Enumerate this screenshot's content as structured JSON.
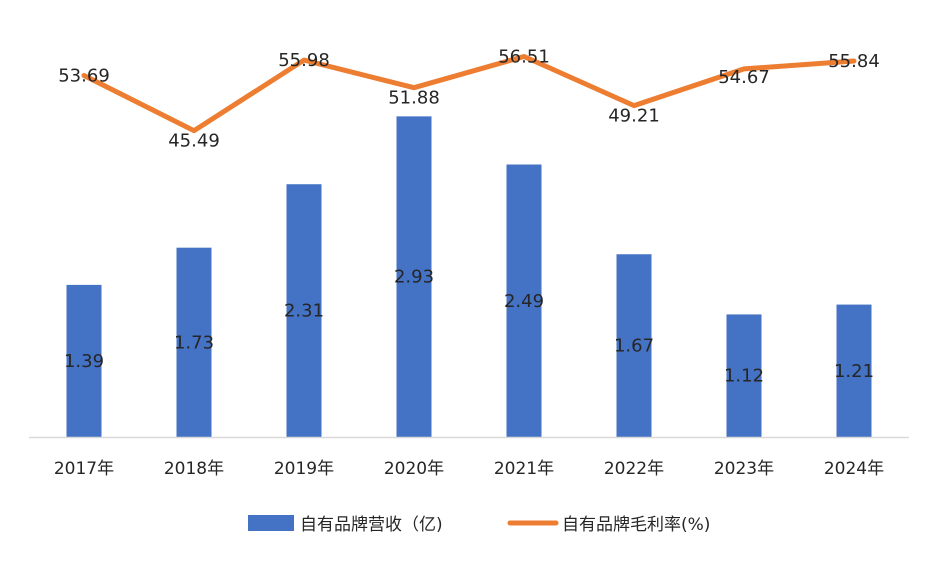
{
  "chart_data": {
    "type": "bar",
    "categories": [
      "2017年",
      "2018年",
      "2019年",
      "2020年",
      "2021年",
      "2022年",
      "2023年",
      "2024年"
    ],
    "series": [
      {
        "name": "自有品牌营收（亿)",
        "type": "bar",
        "axis": "left",
        "values": [
          1.39,
          1.73,
          2.31,
          2.93,
          2.49,
          1.67,
          1.12,
          1.21
        ],
        "color": "#4472C4"
      },
      {
        "name": "自有品牌毛利率(%)",
        "type": "line",
        "axis": "right",
        "values": [
          53.69,
          45.49,
          55.98,
          51.88,
          56.51,
          49.21,
          54.67,
          55.84
        ],
        "color": "#ED7D31"
      }
    ],
    "left_axis": {
      "min": 0,
      "max": 3.5,
      "visible": false
    },
    "right_axis": {
      "min": 0,
      "max": 60,
      "visible": false
    },
    "grid": false,
    "legend_position": "bottom"
  },
  "colors": {
    "bar": "#4472C4",
    "line": "#ED7D31",
    "axis": "#D9D9D9",
    "text": "#262626"
  }
}
